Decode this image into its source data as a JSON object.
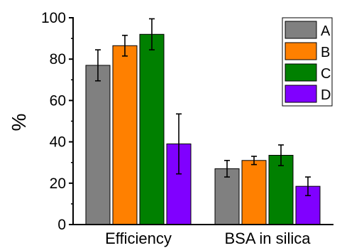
{
  "chart_data": {
    "type": "bar",
    "categories": [
      "Efficiency",
      "BSA in silica"
    ],
    "series": [
      {
        "name": "A",
        "color": "#808080",
        "values": [
          77,
          27
        ],
        "errors": [
          7.5,
          4
        ]
      },
      {
        "name": "B",
        "color": "#ff8000",
        "values": [
          86.5,
          31
        ],
        "errors": [
          5,
          2
        ]
      },
      {
        "name": "C",
        "color": "#008000",
        "values": [
          92,
          33.5
        ],
        "errors": [
          7.5,
          5
        ]
      },
      {
        "name": "D",
        "color": "#8000ff",
        "values": [
          39,
          18.5
        ],
        "errors": [
          14.5,
          4.5
        ]
      }
    ],
    "ylabel": "%",
    "ylim": [
      0,
      100
    ],
    "yticks": [
      0,
      20,
      40,
      60,
      80,
      100
    ],
    "legend_position": "top-right",
    "grid": false
  }
}
